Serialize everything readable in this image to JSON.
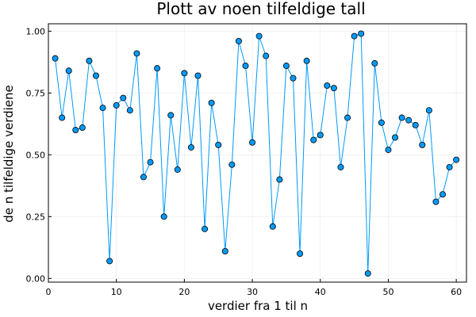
{
  "chart_data": {
    "type": "line",
    "title": "Plott av noen tilfeldige tall",
    "xlabel": "verdier fra 1 til n",
    "ylabel": "de n tilfeldige verdiene",
    "xlim": [
      0,
      61.5
    ],
    "ylim": [
      -0.015,
      1.03
    ],
    "xticks": [
      0,
      10,
      20,
      30,
      40,
      50,
      60
    ],
    "xtick_labels": [
      "0",
      "10",
      "20",
      "30",
      "40",
      "50",
      "60"
    ],
    "yticks": [
      0.0,
      0.25,
      0.5,
      0.75,
      1.0
    ],
    "ytick_labels": [
      "0.00",
      "0.25",
      "0.50",
      "0.75",
      "1.00"
    ],
    "grid": true,
    "legend": "none",
    "colors": {
      "series": "#009AFA",
      "marker_edge": "#000000"
    },
    "series": [
      {
        "x": [
          1,
          2,
          3,
          4,
          5,
          6,
          7,
          8,
          9,
          10,
          11,
          12,
          13,
          14,
          15,
          16,
          17,
          18,
          19,
          20,
          21,
          22,
          23,
          24,
          25,
          26,
          27,
          28,
          29,
          30,
          31,
          32,
          33,
          34,
          35,
          36,
          37,
          38,
          39,
          40,
          41,
          42,
          43,
          44,
          45,
          46,
          47,
          48,
          49,
          50,
          51,
          52,
          53,
          54,
          55,
          56,
          57,
          58,
          59,
          60
        ],
        "values": [
          0.89,
          0.65,
          0.84,
          0.6,
          0.61,
          0.88,
          0.82,
          0.69,
          0.07,
          0.7,
          0.73,
          0.68,
          0.91,
          0.41,
          0.47,
          0.85,
          0.25,
          0.66,
          0.44,
          0.83,
          0.53,
          0.82,
          0.2,
          0.71,
          0.54,
          0.11,
          0.46,
          0.96,
          0.86,
          0.55,
          0.98,
          0.9,
          0.21,
          0.4,
          0.86,
          0.81,
          0.1,
          0.88,
          0.56,
          0.58,
          0.78,
          0.77,
          0.45,
          0.65,
          0.98,
          0.99,
          0.02,
          0.87,
          0.63,
          0.52,
          0.57,
          0.65,
          0.64,
          0.62,
          0.54,
          0.68,
          0.31,
          0.34,
          0.45,
          0.48
        ]
      }
    ]
  }
}
